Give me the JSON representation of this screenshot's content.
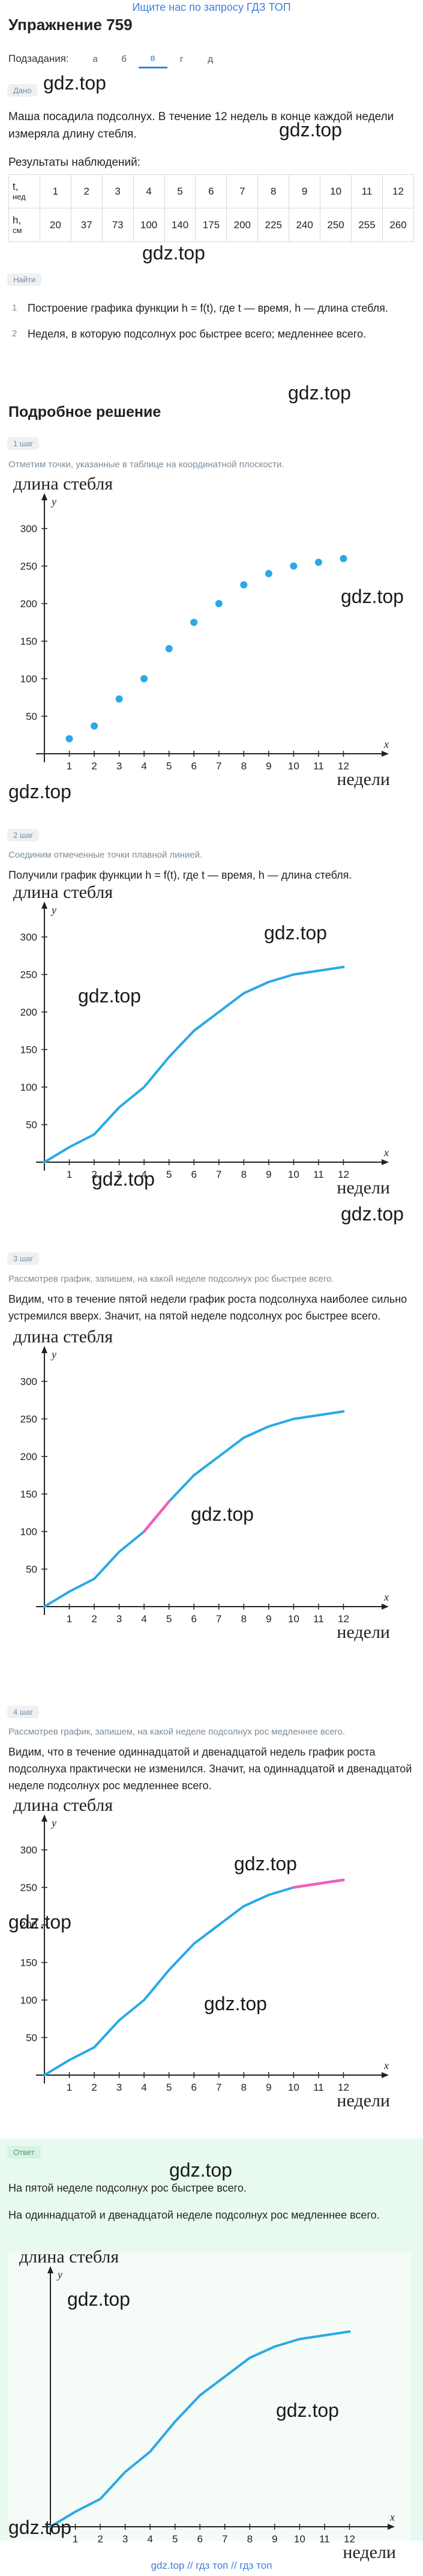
{
  "topbar": {
    "link": "Ищите нас по запросу ГДЗ ТОП"
  },
  "title": "Упражнение 759",
  "subtasks": {
    "label": "Подзадания:",
    "items": [
      "а",
      "б",
      "в",
      "г",
      "д"
    ],
    "active_index": 2
  },
  "watermark": "gdz.top",
  "given": {
    "label": "Дано",
    "text": "Маша посадила подсолнух. В течение 12 недель в конце каждой недели измеряла длину стебля.",
    "results_title": "Результаты наблюдений:",
    "row_t_label": "t,",
    "row_t_unit": "нед",
    "row_h_label": "h,",
    "row_h_unit": "см",
    "weeks": [
      "1",
      "2",
      "3",
      "4",
      "5",
      "6",
      "7",
      "8",
      "9",
      "10",
      "11",
      "12"
    ],
    "heights": [
      "20",
      "37",
      "73",
      "100",
      "140",
      "175",
      "200",
      "225",
      "240",
      "250",
      "255",
      "260"
    ]
  },
  "find": {
    "label": "Найти",
    "items": [
      "Построение графика функции h = f(t), где t — время, h — длина стебля.",
      "Неделя, в которую подсолнух рос быстрее всего; медленнее всего."
    ]
  },
  "solution_title": "Подробное решение",
  "steps": [
    {
      "label": "1 шаг",
      "text": "Отметим точки, указанные в таблице на координатной плоскости."
    },
    {
      "label": "2 шаг",
      "text": "Соединим отмеченные точки плавной линией.",
      "text2": "Получили график функции h = f(t), где t — время, h — длина стебля."
    },
    {
      "label": "3 шаг",
      "text": "Рассмотрев график, запишем, на какой неделе подсолнух рос быстрее всего.",
      "text2": "Видим, что в течение пятой недели график роста подсолнуха наиболее сильно устремился вверх. Значит, на пятой неделе подсолнух рос быстрее всего."
    },
    {
      "label": "4 шаг",
      "text": "Рассмотрев график, запишем, на какой неделе подсолнух рос медленнее всего.",
      "text2": "Видим, что в течение одиннадцатой и двенадцатой недель график роста подсолнуха практически не изменился. Значит, на одиннадцатой и двенадцатой неделе подсолнух рос медленнее всего."
    }
  ],
  "answer": {
    "label": "Ответ",
    "line1": "На пятой неделе подсолнух рос быстрее всего.",
    "line2": "На одиннадцатой и двенадцатой неделе подсолнух рос медленнее всего."
  },
  "footer": "gdz.top // гдз топ // гдз топ",
  "colors": {
    "line": "#29a9e6",
    "highlight": "#f05fb7",
    "accent": "#3f7fe0"
  },
  "chart_data": [
    {
      "type": "scatter",
      "ylabel": "длина стебля",
      "xlabel": "недели",
      "x_var": "x",
      "y_var": "y",
      "x": [
        1,
        2,
        3,
        4,
        5,
        6,
        7,
        8,
        9,
        10,
        11,
        12
      ],
      "y": [
        20,
        37,
        73,
        100,
        140,
        175,
        200,
        225,
        240,
        250,
        255,
        260
      ],
      "xticks": [
        1,
        2,
        3,
        4,
        5,
        6,
        7,
        8,
        9,
        10,
        11,
        12
      ],
      "yticks": [
        50,
        100,
        150,
        200,
        250,
        300
      ],
      "xlim": [
        0,
        13
      ],
      "ylim": [
        0,
        320
      ],
      "highlight_segments": []
    },
    {
      "type": "line",
      "ylabel": "длина стебля",
      "xlabel": "недели",
      "x_var": "x",
      "y_var": "y",
      "x": [
        0,
        1,
        2,
        3,
        4,
        5,
        6,
        7,
        8,
        9,
        10,
        11,
        12
      ],
      "y": [
        0,
        20,
        37,
        73,
        100,
        140,
        175,
        200,
        225,
        240,
        250,
        255,
        260
      ],
      "xticks": [
        1,
        2,
        3,
        4,
        5,
        6,
        7,
        8,
        9,
        10,
        11,
        12
      ],
      "yticks": [
        50,
        100,
        150,
        200,
        250,
        300
      ],
      "xlim": [
        0,
        13
      ],
      "ylim": [
        0,
        320
      ],
      "highlight_segments": []
    },
    {
      "type": "line",
      "ylabel": "длина стебля",
      "xlabel": "недели",
      "x_var": "x",
      "y_var": "y",
      "x": [
        0,
        1,
        2,
        3,
        4,
        5,
        6,
        7,
        8,
        9,
        10,
        11,
        12
      ],
      "y": [
        0,
        20,
        37,
        73,
        100,
        140,
        175,
        200,
        225,
        240,
        250,
        255,
        260
      ],
      "xticks": [
        1,
        2,
        3,
        4,
        5,
        6,
        7,
        8,
        9,
        10,
        11,
        12
      ],
      "yticks": [
        50,
        100,
        150,
        200,
        250,
        300
      ],
      "xlim": [
        0,
        13
      ],
      "ylim": [
        0,
        320
      ],
      "highlight_segments": [
        [
          4,
          5
        ]
      ]
    },
    {
      "type": "line",
      "ylabel": "длина стебля",
      "xlabel": "недели",
      "x_var": "x",
      "y_var": "y",
      "x": [
        0,
        1,
        2,
        3,
        4,
        5,
        6,
        7,
        8,
        9,
        10,
        11,
        12
      ],
      "y": [
        0,
        20,
        37,
        73,
        100,
        140,
        175,
        200,
        225,
        240,
        250,
        255,
        260
      ],
      "xticks": [
        1,
        2,
        3,
        4,
        5,
        6,
        7,
        8,
        9,
        10,
        11,
        12
      ],
      "yticks": [
        50,
        100,
        150,
        200,
        250,
        300
      ],
      "xlim": [
        0,
        13
      ],
      "ylim": [
        0,
        320
      ],
      "highlight_segments": [
        [
          10,
          12
        ]
      ]
    },
    {
      "type": "line",
      "ylabel": "длина стебля",
      "xlabel": "недели",
      "x_var": "x",
      "y_var": "y",
      "x": [
        0,
        1,
        2,
        3,
        4,
        5,
        6,
        7,
        8,
        9,
        10,
        11,
        12
      ],
      "y": [
        0,
        20,
        37,
        73,
        100,
        140,
        175,
        200,
        225,
        240,
        250,
        255,
        260
      ],
      "xticks": [
        1,
        2,
        3,
        4,
        5,
        6,
        7,
        8,
        9,
        10,
        11,
        12
      ],
      "yticks": [],
      "xlim": [
        0,
        13
      ],
      "ylim": [
        0,
        320
      ],
      "highlight_segments": []
    }
  ]
}
